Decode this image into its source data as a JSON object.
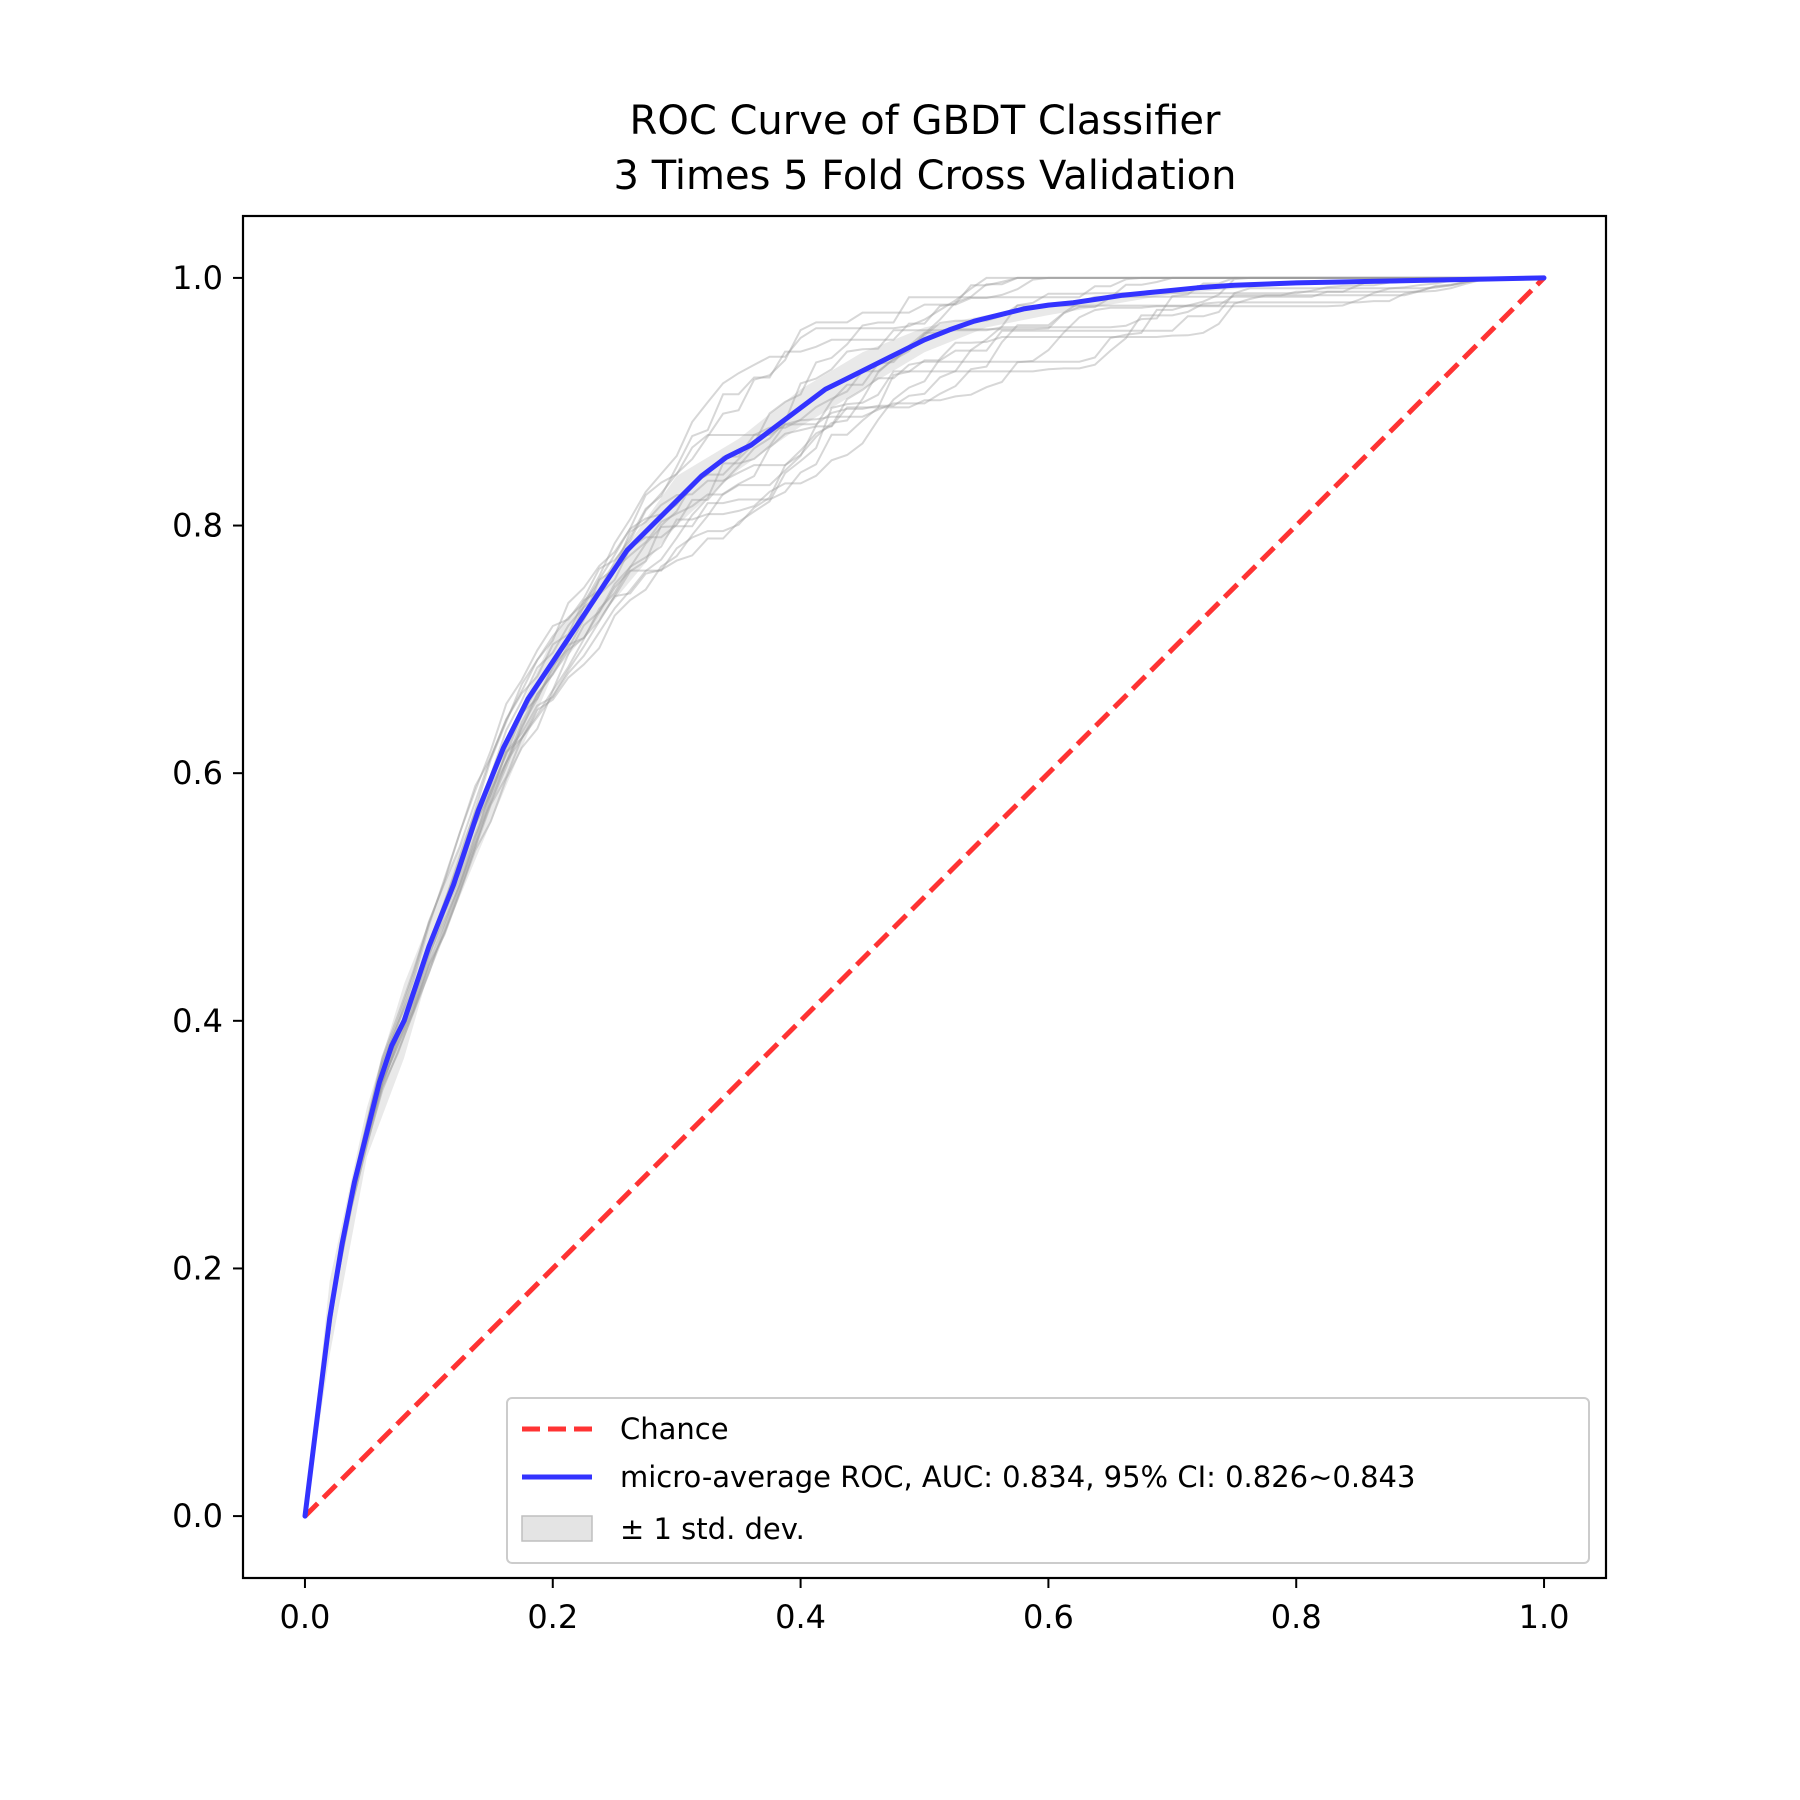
{
  "chart_data": {
    "type": "line",
    "title": [
      "ROC Curve of GBDT Classifier",
      "3 Times 5 Fold Cross Validation"
    ],
    "xlabel": "",
    "ylabel": "",
    "xlim": [
      -0.05,
      1.05
    ],
    "ylim": [
      -0.05,
      1.05
    ],
    "xticks": [
      0.0,
      0.2,
      0.4,
      0.6,
      0.8,
      1.0
    ],
    "yticks": [
      0.0,
      0.2,
      0.4,
      0.6,
      0.8,
      1.0
    ],
    "xtick_labels": [
      "0.0",
      "0.2",
      "0.4",
      "0.6",
      "0.8",
      "1.0"
    ],
    "ytick_labels": [
      "0.0",
      "0.2",
      "0.4",
      "0.6",
      "0.8",
      "1.0"
    ],
    "grid": false,
    "legend_position": "lower-right",
    "legend": [
      {
        "label": "Chance",
        "style": "dashed-line",
        "color": "#ff3333"
      },
      {
        "label": "micro-average ROC, AUC: 0.834, 95% CI: 0.826~0.843",
        "style": "line",
        "color": "#3333ff"
      },
      {
        "label": "± 1 std. dev.",
        "style": "band",
        "color": "#bfbfbf"
      }
    ],
    "series": [
      {
        "name": "Chance",
        "color": "#ff3333",
        "x": [
          0,
          1
        ],
        "y": [
          0,
          1
        ]
      },
      {
        "name": "micro-average ROC",
        "color": "#3333ff",
        "x": [
          0,
          0.01,
          0.02,
          0.03,
          0.04,
          0.05,
          0.06,
          0.07,
          0.08,
          0.09,
          0.1,
          0.12,
          0.14,
          0.16,
          0.18,
          0.2,
          0.22,
          0.24,
          0.26,
          0.28,
          0.3,
          0.32,
          0.34,
          0.36,
          0.38,
          0.4,
          0.42,
          0.44,
          0.46,
          0.48,
          0.5,
          0.52,
          0.54,
          0.56,
          0.58,
          0.6,
          0.62,
          0.64,
          0.66,
          0.68,
          0.7,
          0.72,
          0.75,
          0.8,
          0.85,
          0.9,
          0.95,
          1.0
        ],
        "y": [
          0,
          0.08,
          0.16,
          0.22,
          0.27,
          0.31,
          0.35,
          0.38,
          0.4,
          0.43,
          0.46,
          0.51,
          0.57,
          0.62,
          0.66,
          0.69,
          0.72,
          0.75,
          0.78,
          0.8,
          0.82,
          0.84,
          0.855,
          0.865,
          0.88,
          0.895,
          0.91,
          0.92,
          0.93,
          0.94,
          0.95,
          0.958,
          0.965,
          0.97,
          0.975,
          0.978,
          0.98,
          0.983,
          0.986,
          0.988,
          0.99,
          0.992,
          0.994,
          0.996,
          0.997,
          0.998,
          0.999,
          1.0
        ]
      }
    ],
    "std_band": {
      "x": [
        0,
        0.02,
        0.05,
        0.08,
        0.1,
        0.15,
        0.2,
        0.25,
        0.3,
        0.35,
        0.4,
        0.45,
        0.5,
        0.55,
        0.6,
        0.7,
        0.8,
        0.9,
        1.0
      ],
      "upper": [
        0,
        0.19,
        0.33,
        0.43,
        0.48,
        0.6,
        0.71,
        0.77,
        0.84,
        0.87,
        0.91,
        0.94,
        0.96,
        0.97,
        0.98,
        0.99,
        0.998,
        0.999,
        1.0
      ],
      "lower": [
        0,
        0.13,
        0.29,
        0.37,
        0.44,
        0.56,
        0.68,
        0.74,
        0.8,
        0.845,
        0.88,
        0.91,
        0.94,
        0.96,
        0.97,
        0.987,
        0.995,
        0.998,
        1.0
      ]
    },
    "fold_curves_count": 15
  }
}
